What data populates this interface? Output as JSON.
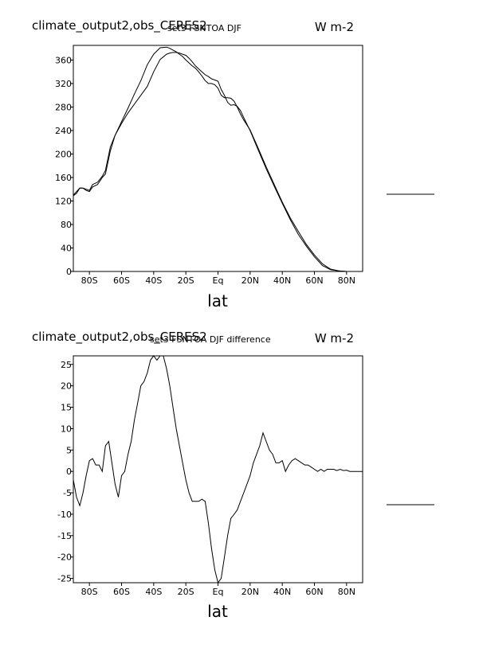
{
  "chart_data": [
    {
      "type": "line",
      "title": "climate_output2,obs_CERES2",
      "subtitle": "set3 FSNTOA DJF",
      "units": "W m-2",
      "xlabel": "lat",
      "ylabel": "",
      "xlim": [
        -90,
        90
      ],
      "ylim": [
        0,
        385
      ],
      "x_ticks": [
        -80,
        -60,
        -40,
        -20,
        0,
        20,
        40,
        60,
        80
      ],
      "x_tick_labels": [
        "80S",
        "60S",
        "40S",
        "20S",
        "Eq",
        "20N",
        "40N",
        "60N",
        "80N"
      ],
      "y_ticks": [
        0,
        40,
        80,
        120,
        160,
        200,
        240,
        280,
        320,
        360
      ],
      "y_tick_labels": [
        "0",
        "40",
        "80",
        "120",
        "160",
        "200",
        "240",
        "280",
        "320",
        "360"
      ],
      "grid": false,
      "legend": "right (line samples only)",
      "series": [
        {
          "x": [
            -90,
            -88,
            -86,
            -84,
            -82,
            -80,
            -78,
            -75,
            -72,
            -70,
            -67,
            -64,
            -60,
            -56,
            -52,
            -48,
            -44,
            -40,
            -36,
            -32,
            -30,
            -28,
            -26,
            -24,
            -22,
            -20,
            -18,
            -16,
            -14,
            -12,
            -10,
            -8,
            -6,
            -4,
            -2,
            0,
            2,
            4,
            6,
            8,
            10,
            12,
            14,
            16,
            20,
            25,
            30,
            35,
            40,
            45,
            50,
            55,
            60,
            65,
            70,
            75,
            80,
            85,
            90
          ],
          "y": [
            130,
            136,
            142,
            142,
            140,
            138,
            148,
            152,
            162,
            172,
            212,
            232,
            255,
            278,
            302,
            325,
            352,
            370,
            381,
            382,
            380,
            377,
            374,
            370,
            366,
            360,
            355,
            350,
            346,
            340,
            333,
            325,
            320,
            320,
            318,
            312,
            300,
            296,
            296,
            295,
            290,
            280,
            268,
            258,
            241,
            210,
            178,
            148,
            118,
            91,
            68,
            46,
            28,
            13,
            4,
            1,
            0,
            0,
            0
          ]
        },
        {
          "x": [
            -90,
            -88,
            -86,
            -84,
            -82,
            -80,
            -78,
            -75,
            -72,
            -70,
            -67,
            -64,
            -60,
            -56,
            -52,
            -48,
            -44,
            -40,
            -36,
            -32,
            -30,
            -28,
            -26,
            -24,
            -22,
            -20,
            -18,
            -16,
            -14,
            -12,
            -10,
            -8,
            -6,
            -4,
            -2,
            0,
            2,
            4,
            6,
            8,
            10,
            12,
            14,
            16,
            20,
            25,
            30,
            35,
            40,
            45,
            50,
            55,
            60,
            65,
            70,
            75,
            80,
            85,
            90
          ],
          "y": [
            129,
            133,
            142,
            142,
            138,
            136,
            144,
            148,
            160,
            166,
            205,
            232,
            252,
            270,
            285,
            300,
            315,
            340,
            361,
            370,
            372,
            373,
            373,
            372,
            370,
            368,
            363,
            357,
            350,
            345,
            340,
            335,
            332,
            328,
            326,
            324,
            310,
            300,
            288,
            283,
            284,
            281,
            274,
            262,
            240,
            207,
            175,
            145,
            116,
            88,
            63,
            43,
            25,
            10,
            3,
            1,
            0,
            0,
            0
          ]
        }
      ]
    },
    {
      "type": "line",
      "title": "climate_output2,obs_CERES2",
      "subtitle": "set3 FSNTOA DJF difference",
      "units": "W m-2",
      "xlabel": "lat",
      "ylabel": "",
      "xlim": [
        -90,
        90
      ],
      "ylim": [
        -26,
        27
      ],
      "x_ticks": [
        -80,
        -60,
        -40,
        -20,
        0,
        20,
        40,
        60,
        80
      ],
      "x_tick_labels": [
        "80S",
        "60S",
        "40S",
        "20S",
        "Eq",
        "20N",
        "40N",
        "60N",
        "80N"
      ],
      "y_ticks": [
        -25,
        -20,
        -15,
        -10,
        -5,
        0,
        5,
        10,
        15,
        20,
        25
      ],
      "y_tick_labels": [
        "-25",
        "-20",
        "-15",
        "-10",
        "-5",
        "0",
        "5",
        "10",
        "15",
        "20",
        "25"
      ],
      "grid": false,
      "legend": "right (line sample only)",
      "series": [
        {
          "x": [
            -90,
            -88,
            -86,
            -84,
            -82,
            -80,
            -78,
            -76,
            -74,
            -72,
            -70,
            -68,
            -66,
            -64,
            -62,
            -60,
            -58,
            -56,
            -54,
            -52,
            -50,
            -48,
            -46,
            -44,
            -42,
            -40,
            -38,
            -36,
            -34,
            -32,
            -30,
            -28,
            -26,
            -24,
            -22,
            -20,
            -18,
            -16,
            -14,
            -12,
            -10,
            -8,
            -6,
            -4,
            -2,
            0,
            2,
            4,
            6,
            8,
            10,
            12,
            14,
            16,
            18,
            20,
            22,
            24,
            26,
            28,
            30,
            32,
            34,
            36,
            38,
            40,
            42,
            44,
            46,
            48,
            50,
            52,
            54,
            56,
            58,
            60,
            62,
            64,
            66,
            68,
            70,
            72,
            74,
            76,
            78,
            80,
            82,
            84,
            86,
            88,
            90
          ],
          "y": [
            -2,
            -6,
            -8,
            -5,
            -1,
            2.5,
            3,
            1.5,
            1.5,
            0,
            6,
            7,
            2,
            -3,
            -6,
            -1,
            0,
            4,
            7,
            12,
            16,
            20,
            21,
            23,
            26,
            27,
            26,
            27,
            27,
            24,
            20,
            15,
            10,
            6,
            2,
            -2,
            -5,
            -7,
            -7,
            -7,
            -6.5,
            -7,
            -12,
            -18,
            -23,
            -26,
            -25,
            -20,
            -15,
            -11,
            -10,
            -9,
            -7,
            -5,
            -3,
            -1,
            2,
            4,
            6,
            9,
            7,
            5,
            4,
            2,
            2,
            2.5,
            0,
            1.5,
            2.5,
            3,
            2.5,
            2,
            1.5,
            1.5,
            1,
            0.5,
            0,
            0.5,
            0,
            0.5,
            0.5,
            0.5,
            0.2,
            0.5,
            0.2,
            0.3,
            0,
            0,
            0,
            0,
            0
          ]
        }
      ]
    }
  ]
}
